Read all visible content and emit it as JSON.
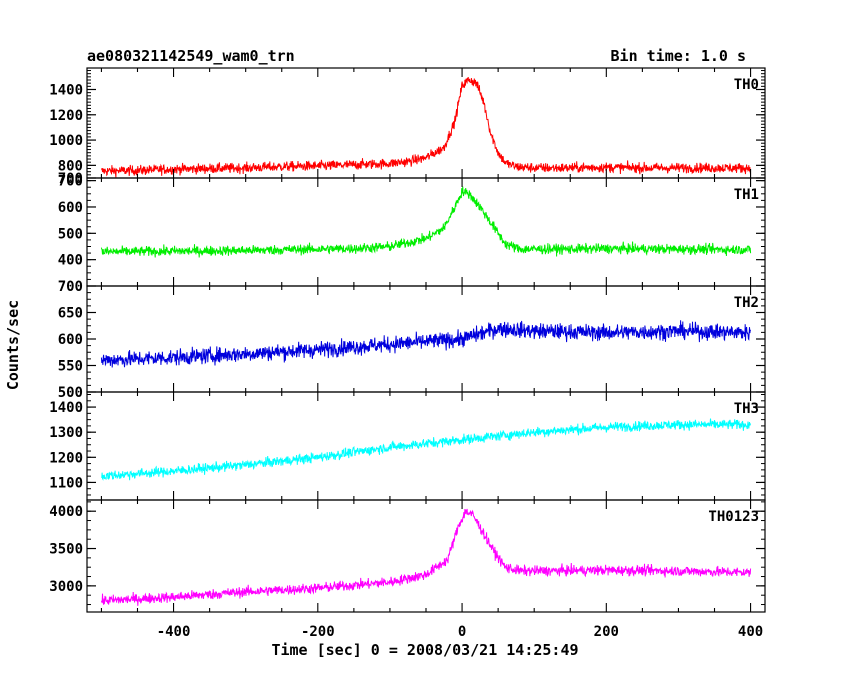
{
  "header": {
    "title": "ae080321142549_wam0_trn",
    "bin_time": "Bin time: 1.0 s"
  },
  "chart_data": {
    "type": "line",
    "title": "ae080321142549_wam0_trn",
    "subtitle": "Bin time: 1.0 s",
    "xlabel": "Time [sec] 0 = 2008/03/21 14:25:49",
    "ylabel": "Counts/sec",
    "xlim": [
      -520,
      420
    ],
    "xticks": [
      -400,
      -200,
      0,
      200,
      400
    ],
    "grid": false,
    "panels": [
      {
        "name": "TH0",
        "color": "#ff0000",
        "ylim": [
          700,
          1570
        ],
        "yticks": [
          700,
          800,
          1000,
          1200,
          1400
        ],
        "x": [
          -500,
          -450,
          -400,
          -350,
          -300,
          -250,
          -200,
          -150,
          -100,
          -75,
          -50,
          -25,
          -10,
          0,
          10,
          20,
          30,
          40,
          50,
          60,
          75,
          100,
          150,
          200,
          250,
          300,
          350,
          400
        ],
        "y": [
          755,
          760,
          770,
          775,
          780,
          790,
          795,
          805,
          815,
          830,
          860,
          940,
          1150,
          1430,
          1480,
          1450,
          1300,
          1050,
          900,
          820,
          790,
          780,
          780,
          785,
          780,
          780,
          780,
          778
        ]
      },
      {
        "name": "TH1",
        "color": "#00ee00",
        "ylim": [
          300,
          710
        ],
        "yticks": [
          400,
          500,
          600,
          700
        ],
        "x": [
          -500,
          -400,
          -300,
          -200,
          -150,
          -100,
          -50,
          -25,
          -10,
          0,
          10,
          25,
          40,
          60,
          80,
          100,
          150,
          200,
          300,
          400
        ],
        "y": [
          430,
          432,
          435,
          440,
          442,
          450,
          480,
          520,
          600,
          660,
          650,
          600,
          540,
          460,
          440,
          440,
          440,
          442,
          440,
          438
        ]
      },
      {
        "name": "TH2",
        "color": "#0000dd",
        "ylim": [
          500,
          700
        ],
        "yticks": [
          500,
          550,
          600,
          650,
          700
        ],
        "x": [
          -500,
          -400,
          -300,
          -200,
          -100,
          0,
          50,
          100,
          200,
          300,
          400
        ],
        "y": [
          560,
          565,
          572,
          580,
          590,
          600,
          620,
          615,
          612,
          615,
          612
        ]
      },
      {
        "name": "TH3",
        "color": "#00ffff",
        "ylim": [
          1030,
          1460
        ],
        "yticks": [
          1100,
          1200,
          1300,
          1400
        ],
        "x": [
          -500,
          -400,
          -300,
          -200,
          -100,
          0,
          100,
          200,
          300,
          400
        ],
        "y": [
          1125,
          1145,
          1170,
          1200,
          1240,
          1270,
          1300,
          1320,
          1330,
          1330
        ]
      },
      {
        "name": "TH0123",
        "color": "#ff00ff",
        "ylim": [
          2650,
          4150
        ],
        "yticks": [
          3000,
          3500,
          4000
        ],
        "x": [
          -500,
          -400,
          -300,
          -200,
          -100,
          -50,
          -20,
          -5,
          5,
          15,
          30,
          45,
          60,
          80,
          100,
          200,
          300,
          400
        ],
        "y": [
          2800,
          2850,
          2920,
          2970,
          3050,
          3150,
          3350,
          3800,
          4000,
          3950,
          3700,
          3450,
          3250,
          3200,
          3200,
          3210,
          3200,
          3180
        ]
      }
    ]
  }
}
